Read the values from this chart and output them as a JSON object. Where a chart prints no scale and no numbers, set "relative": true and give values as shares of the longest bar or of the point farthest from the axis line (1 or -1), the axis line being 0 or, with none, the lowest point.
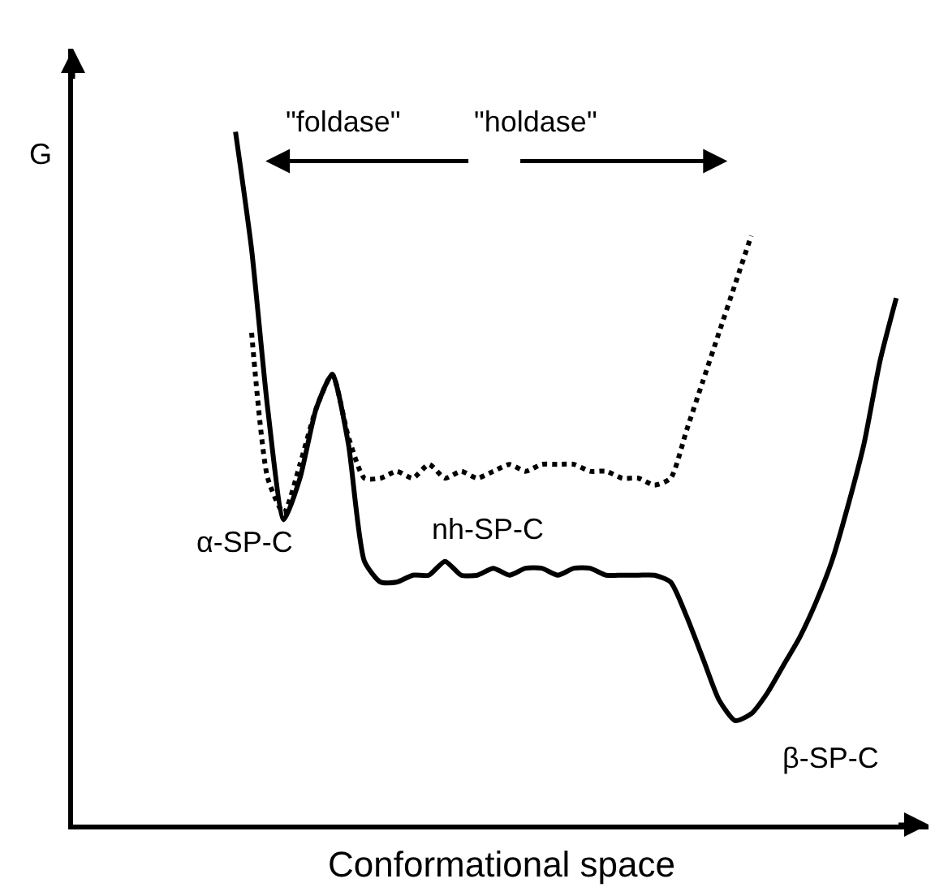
{
  "chart_data": {
    "type": "line",
    "relative": true,
    "xlabel": "Conformational space",
    "categories": [
      null,
      null,
      null,
      null,
      null,
      null,
      null,
      null,
      null,
      null,
      null,
      null,
      null,
      null,
      null,
      null,
      null,
      null,
      null,
      null,
      null,
      null,
      null,
      null,
      null,
      null,
      null,
      null,
      null,
      null,
      null,
      null,
      null,
      null,
      null,
      null,
      null,
      null,
      null,
      null,
      null,
      null
    ],
    "series": [
      {
        "color": "#000000",
        "line_style": "solid",
        "values": [
          1.0,
          0.83,
          0.6,
          0.44,
          0.5,
          0.6,
          0.65,
          0.55,
          0.38,
          0.35,
          0.35,
          0.36,
          0.36,
          0.38,
          0.36,
          0.36,
          0.37,
          0.36,
          0.37,
          0.37,
          0.36,
          0.37,
          0.37,
          0.36,
          0.36,
          0.36,
          0.36,
          0.35,
          0.3,
          0.24,
          0.18,
          0.15,
          0.16,
          0.19,
          0.23,
          0.27,
          0.32,
          0.38,
          0.46,
          0.55,
          0.67,
          0.76
        ]
      },
      {
        "color": "#000000",
        "line_style": "dotted",
        "values": [
          null,
          0.71,
          0.5,
          0.45,
          0.52,
          0.6,
          0.65,
          0.56,
          0.5,
          0.5,
          0.51,
          0.5,
          0.52,
          0.5,
          0.51,
          0.5,
          0.51,
          0.52,
          0.51,
          0.52,
          0.52,
          0.52,
          0.51,
          0.51,
          0.5,
          0.5,
          0.49,
          0.5,
          0.57,
          0.64,
          0.71,
          0.78,
          0.85,
          null,
          null,
          null,
          null,
          null,
          null,
          null,
          null,
          null
        ]
      }
    ],
    "annotations": [
      "\"foldase\"",
      "\"holdase\"",
      "α-SP-C",
      "nh-SP-C",
      "β-SP-C",
      "G"
    ]
  }
}
